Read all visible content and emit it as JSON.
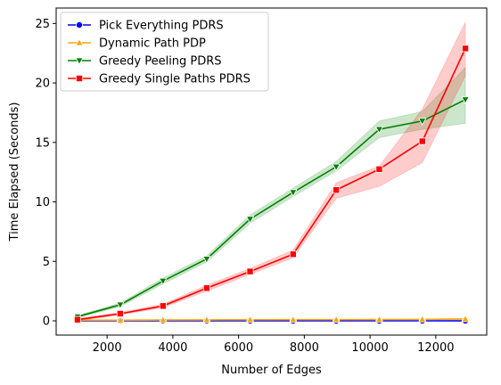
{
  "chart_data": {
    "type": "line",
    "title": "",
    "xlabel": "Number of Edges",
    "ylabel": "Time Elapsed (Seconds)",
    "xlim": [
      450,
      13550
    ],
    "ylim": [
      -1.2,
      26.3
    ],
    "xticks": [
      2000,
      4000,
      6000,
      8000,
      10000,
      12000
    ],
    "yticks": [
      0,
      5,
      10,
      15,
      20,
      25
    ],
    "grid": false,
    "legend_position": "top-left",
    "x": [
      1100,
      2400,
      3700,
      5030,
      6350,
      7660,
      8970,
      10280,
      11590,
      12900
    ],
    "series": [
      {
        "name": "Pick Everything PDRS",
        "color": "#0000ff",
        "marker": "circle",
        "values": [
          0.0,
          0.0,
          0.0,
          0.0,
          0.0,
          0.0,
          0.0,
          0.0,
          0.0,
          0.0
        ],
        "ci_lower": [
          0.0,
          0.0,
          0.0,
          0.0,
          0.0,
          0.0,
          0.0,
          0.0,
          0.0,
          -0.05
        ],
        "ci_upper": [
          0.0,
          0.0,
          0.0,
          0.0,
          0.0,
          0.0,
          0.0,
          0.0,
          0.0,
          0.05
        ]
      },
      {
        "name": "Dynamic Path PDP",
        "color": "#ffa500",
        "marker": "triangle-up",
        "values": [
          0.05,
          0.05,
          0.07,
          0.08,
          0.09,
          0.1,
          0.1,
          0.11,
          0.12,
          0.15
        ],
        "ci_lower": [
          0.04,
          0.04,
          0.06,
          0.07,
          0.08,
          0.09,
          0.09,
          0.1,
          0.11,
          0.1
        ],
        "ci_upper": [
          0.06,
          0.06,
          0.08,
          0.09,
          0.1,
          0.11,
          0.11,
          0.12,
          0.13,
          0.2
        ]
      },
      {
        "name": "Greedy Peeling PDRS",
        "color": "#008000",
        "marker": "triangle-down",
        "values": [
          0.35,
          1.35,
          3.35,
          5.2,
          8.55,
          10.8,
          12.95,
          16.1,
          16.8,
          18.6
        ],
        "ci_lower": [
          0.25,
          1.2,
          3.1,
          4.95,
          8.2,
          10.45,
          12.6,
          15.4,
          16.1,
          16.6
        ],
        "ci_upper": [
          0.45,
          1.5,
          3.6,
          5.45,
          8.9,
          11.15,
          13.4,
          16.8,
          17.6,
          21.3
        ]
      },
      {
        "name": "Greedy Single Paths PDRS",
        "color": "#ff0000",
        "marker": "square",
        "values": [
          0.1,
          0.6,
          1.25,
          2.75,
          4.15,
          5.6,
          11.0,
          12.75,
          15.1,
          22.9
        ],
        "ci_lower": [
          0.0,
          0.5,
          1.1,
          2.5,
          3.9,
          5.3,
          10.3,
          11.3,
          13.3,
          20.6
        ],
        "ci_upper": [
          0.2,
          0.7,
          1.4,
          3.0,
          4.4,
          5.95,
          11.6,
          13.0,
          17.8,
          25.1
        ]
      }
    ]
  }
}
